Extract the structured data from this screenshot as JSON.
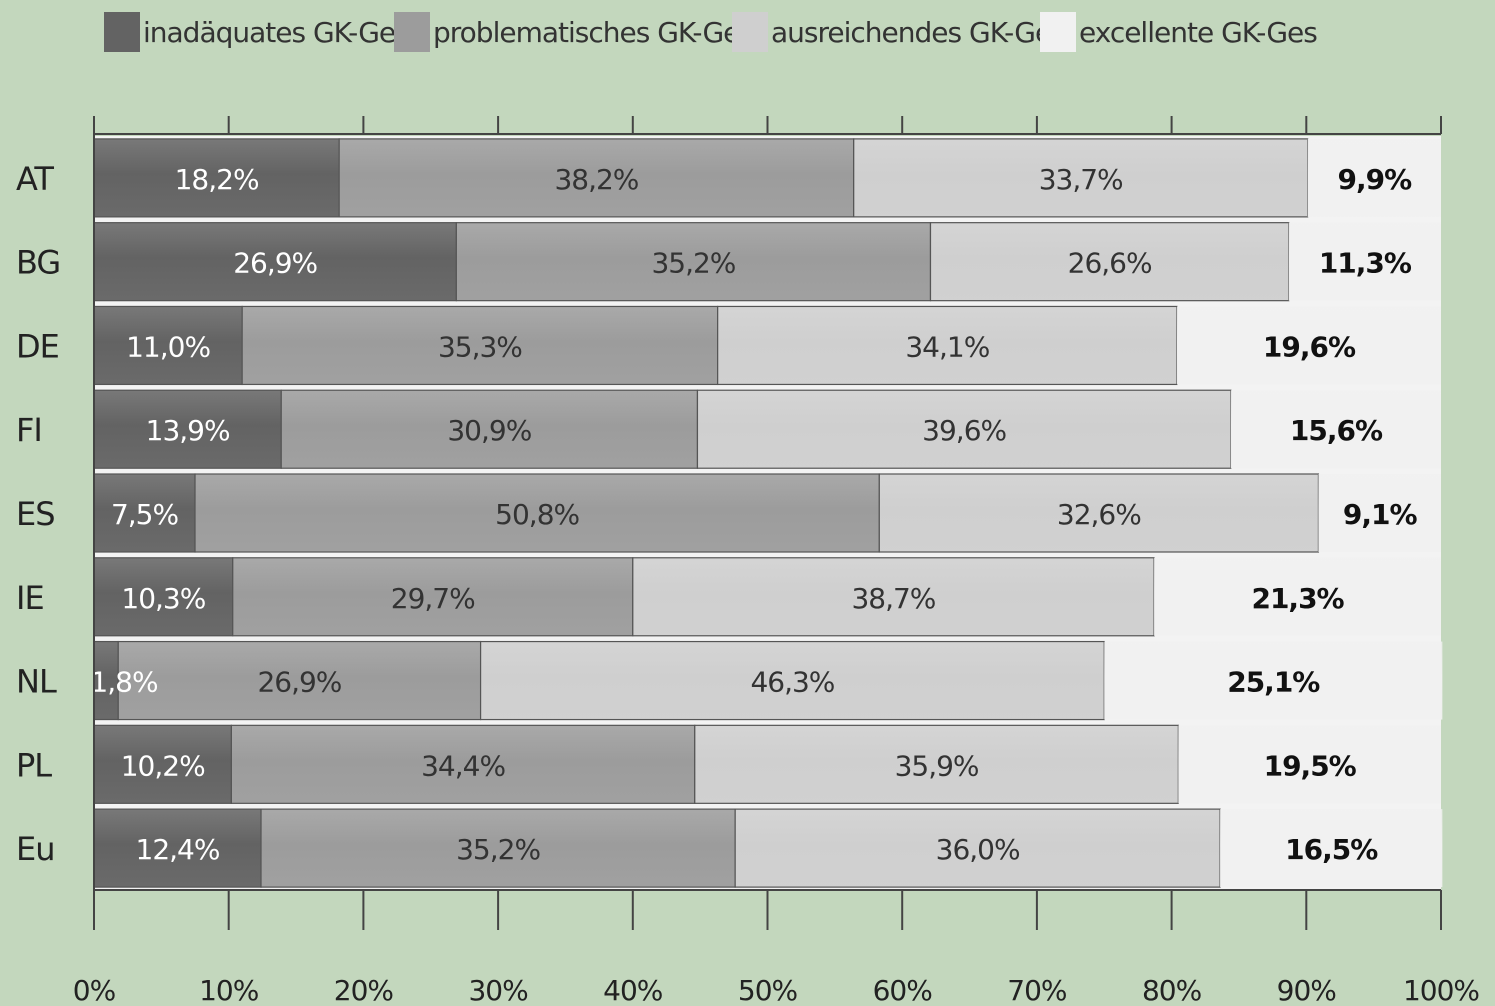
{
  "legend": {
    "items": [
      {
        "label": "inadäquates GK-Ges",
        "color": "#636363"
      },
      {
        "label": "problematisches GK-Ges",
        "color": "#9c9c9c"
      },
      {
        "label": "ausreichendes GK-Ges",
        "color": "#cfcfcf"
      },
      {
        "label": "excellente GK-Ges",
        "color": "#f1f1f1"
      }
    ]
  },
  "chart_data": {
    "type": "bar",
    "orientation": "horizontal",
    "stacked": "percent",
    "categories": [
      "AT",
      "BG",
      "DE",
      "FI",
      "ES",
      "IE",
      "NL",
      "PL",
      "Eu"
    ],
    "series": [
      {
        "name": "inadäquates GK-Ges",
        "color": "#636363",
        "values": [
          18.2,
          26.9,
          11.0,
          13.9,
          7.5,
          10.3,
          1.8,
          10.2,
          12.4
        ],
        "labels": [
          "18,2%",
          "26,9%",
          "11,0%",
          "13,9%",
          "7,5%",
          "10,3%",
          "1,8%",
          "10,2%",
          "12,4%"
        ]
      },
      {
        "name": "problematisches GK-Ges",
        "color": "#9c9c9c",
        "values": [
          38.2,
          35.2,
          35.3,
          30.9,
          50.8,
          29.7,
          26.9,
          34.4,
          35.2
        ],
        "labels": [
          "38,2%",
          "35,2%",
          "35,3%",
          "30,9%",
          "50,8%",
          "29,7%",
          "26,9%",
          "34,4%",
          "35,2%"
        ]
      },
      {
        "name": "ausreichendes GK-Ges",
        "color": "#cfcfcf",
        "values": [
          33.7,
          26.6,
          34.1,
          39.6,
          32.6,
          38.7,
          46.3,
          35.9,
          36.0
        ],
        "labels": [
          "33,7%",
          "26,6%",
          "34,1%",
          "39,6%",
          "32,6%",
          "38,7%",
          "46,3%",
          "35,9%",
          "36,0%"
        ]
      },
      {
        "name": "excellente GK-Ges",
        "color": "#f1f1f1",
        "values": [
          9.9,
          11.3,
          19.6,
          15.6,
          9.1,
          21.3,
          25.1,
          19.5,
          16.5
        ],
        "labels": [
          "9,9%",
          "11,3%",
          "19,6%",
          "15,6%",
          "9,1%",
          "21,3%",
          "25,1%",
          "19,5%",
          "16,5%"
        ]
      }
    ],
    "xlim": [
      0,
      100
    ],
    "xticks": [
      0,
      10,
      20,
      30,
      40,
      50,
      60,
      70,
      80,
      90,
      100
    ],
    "xtick_labels": [
      "0%",
      "10%",
      "20%",
      "30%",
      "40%",
      "50%",
      "60%",
      "70%",
      "80%",
      "90%",
      "100%"
    ],
    "legend_position": "top",
    "grid": false
  }
}
